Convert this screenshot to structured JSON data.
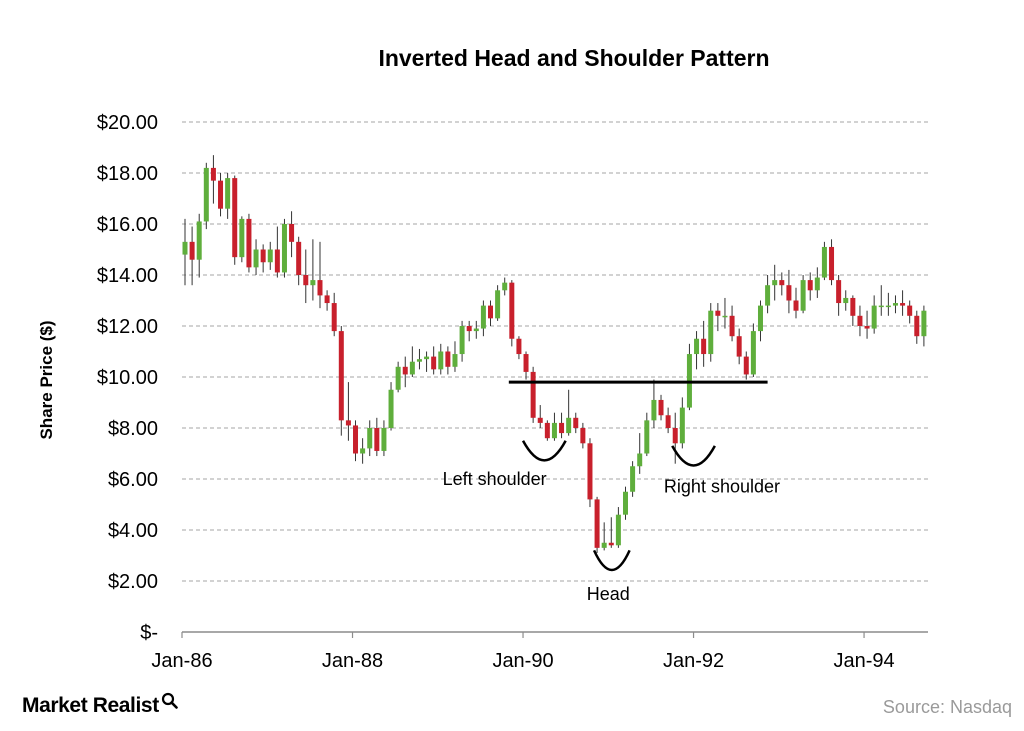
{
  "brand": {
    "name": "Market Realist",
    "icon": "magnifier-icon"
  },
  "source": "Source: Nasdaq",
  "chart_data": {
    "type": "candlestick",
    "title": "Inverted Head and Shoulder Pattern",
    "ylabel": "Share Price ($)",
    "xlabel": "",
    "ylim": [
      0,
      20
    ],
    "yticks": [
      {
        "v": 20,
        "label": "$20.00"
      },
      {
        "v": 18,
        "label": "$18.00"
      },
      {
        "v": 16,
        "label": "$16.00"
      },
      {
        "v": 14,
        "label": "$14.00"
      },
      {
        "v": 12,
        "label": "$12.00"
      },
      {
        "v": 10,
        "label": "$10.00"
      },
      {
        "v": 8,
        "label": "$8.00"
      },
      {
        "v": 6,
        "label": "$6.00"
      },
      {
        "v": 4,
        "label": "$4.00"
      },
      {
        "v": 2,
        "label": "$2.00"
      },
      {
        "v": 0,
        "label": "$-"
      }
    ],
    "xlim": [
      "1986-01",
      "1994-10"
    ],
    "xticks": [
      {
        "t": "1986-01",
        "label": "Jan-86"
      },
      {
        "t": "1988-01",
        "label": "Jan-88"
      },
      {
        "t": "1990-01",
        "label": "Jan-90"
      },
      {
        "t": "1992-01",
        "label": "Jan-92"
      },
      {
        "t": "1994-01",
        "label": "Jan-94"
      }
    ],
    "grid": "horizontal-dashed",
    "colors": {
      "up": "#5fae3c",
      "down": "#c8202c",
      "wick": "#333333",
      "grid": "#a6a6a6"
    },
    "candles": [
      [
        "1986-01",
        14.8,
        15.3,
        13.6,
        16.2
      ],
      [
        "1986-02",
        15.3,
        14.6,
        13.6,
        15.9
      ],
      [
        "1986-03",
        14.6,
        16.1,
        13.9,
        16.4
      ],
      [
        "1986-04",
        16.1,
        18.2,
        15.8,
        18.4
      ],
      [
        "1986-05",
        18.2,
        17.7,
        16.8,
        18.7
      ],
      [
        "1986-06",
        17.7,
        16.6,
        16.3,
        18.0
      ],
      [
        "1986-07",
        16.6,
        17.8,
        16.2,
        18.0
      ],
      [
        "1986-08",
        17.8,
        14.7,
        14.4,
        17.9
      ],
      [
        "1986-09",
        14.7,
        16.2,
        14.5,
        16.3
      ],
      [
        "1986-10",
        16.2,
        14.3,
        14.1,
        16.4
      ],
      [
        "1986-11",
        14.3,
        15.0,
        14.0,
        15.4
      ],
      [
        "1986-12",
        15.0,
        14.5,
        14.1,
        15.2
      ],
      [
        "1987-01",
        14.5,
        15.0,
        14.2,
        15.3
      ],
      [
        "1987-02",
        15.0,
        14.1,
        13.9,
        15.9
      ],
      [
        "1987-03",
        14.1,
        16.0,
        13.9,
        16.2
      ],
      [
        "1987-04",
        16.0,
        15.3,
        14.7,
        16.5
      ],
      [
        "1987-05",
        15.3,
        14.0,
        13.6,
        15.5
      ],
      [
        "1987-06",
        14.0,
        13.6,
        12.9,
        15.0
      ],
      [
        "1987-07",
        13.6,
        13.8,
        13.0,
        15.4
      ],
      [
        "1987-08",
        13.8,
        13.2,
        12.7,
        15.3
      ],
      [
        "1987-09",
        13.2,
        12.9,
        12.6,
        13.4
      ],
      [
        "1987-10",
        12.9,
        11.8,
        11.6,
        13.3
      ],
      [
        "1987-11",
        11.8,
        8.3,
        7.7,
        12.0
      ],
      [
        "1987-12",
        8.3,
        8.1,
        7.5,
        9.8
      ],
      [
        "1988-01",
        8.1,
        7.0,
        6.7,
        8.3
      ],
      [
        "1988-02",
        7.0,
        7.2,
        6.6,
        7.6
      ],
      [
        "1988-03",
        7.2,
        8.0,
        6.9,
        8.3
      ],
      [
        "1988-04",
        8.0,
        7.1,
        6.9,
        8.4
      ],
      [
        "1988-05",
        7.1,
        8.0,
        6.9,
        8.3
      ],
      [
        "1988-06",
        8.0,
        9.5,
        7.9,
        9.8
      ],
      [
        "1988-07",
        9.5,
        10.4,
        9.4,
        10.6
      ],
      [
        "1988-08",
        10.4,
        10.1,
        9.6,
        10.8
      ],
      [
        "1988-09",
        10.1,
        10.6,
        10.0,
        11.2
      ],
      [
        "1988-10",
        10.6,
        10.7,
        10.3,
        11.1
      ],
      [
        "1988-11",
        10.7,
        10.8,
        10.2,
        11.0
      ],
      [
        "1988-12",
        10.8,
        10.3,
        10.1,
        11.2
      ],
      [
        "1989-01",
        10.3,
        11.0,
        10.1,
        11.3
      ],
      [
        "1989-02",
        11.0,
        10.4,
        10.1,
        11.2
      ],
      [
        "1989-03",
        10.4,
        10.9,
        10.2,
        11.4
      ],
      [
        "1989-04",
        10.9,
        12.0,
        10.6,
        12.2
      ],
      [
        "1989-05",
        12.0,
        11.8,
        11.4,
        12.2
      ],
      [
        "1989-06",
        11.8,
        11.9,
        11.5,
        12.2
      ],
      [
        "1989-07",
        11.9,
        12.8,
        11.6,
        13.0
      ],
      [
        "1989-08",
        12.8,
        12.3,
        12.0,
        13.0
      ],
      [
        "1989-09",
        12.3,
        13.4,
        12.2,
        13.6
      ],
      [
        "1989-10",
        13.4,
        13.7,
        13.2,
        13.9
      ],
      [
        "1989-11",
        13.7,
        11.5,
        11.2,
        13.8
      ],
      [
        "1989-12",
        11.5,
        10.9,
        10.7,
        11.6
      ],
      [
        "1990-01",
        10.9,
        10.2,
        9.9,
        11.0
      ],
      [
        "1990-02",
        10.2,
        8.4,
        8.2,
        10.4
      ],
      [
        "1990-03",
        8.4,
        8.2,
        8.0,
        8.9
      ],
      [
        "1990-04",
        8.2,
        7.6,
        7.5,
        8.3
      ],
      [
        "1990-05",
        7.6,
        8.2,
        7.5,
        8.6
      ],
      [
        "1990-06",
        8.2,
        7.8,
        7.6,
        8.6
      ],
      [
        "1990-07",
        7.8,
        8.4,
        7.7,
        9.5
      ],
      [
        "1990-08",
        8.4,
        8.0,
        7.8,
        8.6
      ],
      [
        "1990-09",
        8.0,
        7.4,
        7.2,
        8.2
      ],
      [
        "1990-10",
        7.4,
        5.2,
        4.9,
        7.6
      ],
      [
        "1990-11",
        5.2,
        3.3,
        3.1,
        5.3
      ],
      [
        "1990-12",
        3.3,
        3.5,
        3.2,
        4.3
      ],
      [
        "1991-01",
        3.5,
        3.4,
        3.3,
        4.5
      ],
      [
        "1991-02",
        3.4,
        4.6,
        3.3,
        4.9
      ],
      [
        "1991-03",
        4.6,
        5.5,
        4.4,
        5.7
      ],
      [
        "1991-04",
        5.5,
        6.5,
        5.3,
        6.7
      ],
      [
        "1991-05",
        6.5,
        7.0,
        6.2,
        7.8
      ],
      [
        "1991-06",
        7.0,
        8.3,
        6.9,
        8.6
      ],
      [
        "1991-07",
        8.3,
        9.1,
        8.0,
        9.9
      ],
      [
        "1991-08",
        9.1,
        8.5,
        8.3,
        9.3
      ],
      [
        "1991-09",
        8.5,
        8.0,
        7.8,
        8.8
      ],
      [
        "1991-10",
        8.0,
        7.4,
        6.6,
        8.6
      ],
      [
        "1991-11",
        7.4,
        8.8,
        7.2,
        9.2
      ],
      [
        "1991-12",
        8.8,
        10.9,
        8.7,
        11.3
      ],
      [
        "1992-01",
        10.9,
        11.5,
        10.3,
        11.8
      ],
      [
        "1992-02",
        11.5,
        10.9,
        10.4,
        12.2
      ],
      [
        "1992-03",
        10.9,
        12.6,
        10.6,
        12.9
      ],
      [
        "1992-04",
        12.6,
        12.4,
        11.8,
        12.9
      ],
      [
        "1992-05",
        12.4,
        12.4,
        11.9,
        13.1
      ],
      [
        "1992-06",
        12.4,
        11.6,
        11.4,
        12.8
      ],
      [
        "1992-07",
        11.6,
        10.8,
        10.5,
        11.9
      ],
      [
        "1992-08",
        10.8,
        10.1,
        9.9,
        11.0
      ],
      [
        "1992-09",
        10.1,
        11.8,
        10.0,
        12.1
      ],
      [
        "1992-10",
        11.8,
        12.8,
        11.4,
        13.0
      ],
      [
        "1992-11",
        12.8,
        13.6,
        12.5,
        14.0
      ],
      [
        "1992-12",
        13.6,
        13.8,
        13.0,
        14.4
      ],
      [
        "1993-01",
        13.8,
        13.6,
        13.2,
        14.1
      ],
      [
        "1993-02",
        13.6,
        13.0,
        12.5,
        14.2
      ],
      [
        "1993-03",
        13.0,
        12.6,
        12.3,
        13.5
      ],
      [
        "1993-04",
        12.6,
        13.8,
        12.5,
        14.0
      ],
      [
        "1993-05",
        13.8,
        13.4,
        13.0,
        14.1
      ],
      [
        "1993-06",
        13.4,
        13.9,
        13.1,
        14.3
      ],
      [
        "1993-07",
        13.9,
        15.1,
        13.8,
        15.3
      ],
      [
        "1993-08",
        15.1,
        13.8,
        13.6,
        15.4
      ],
      [
        "1993-09",
        13.8,
        12.9,
        12.4,
        14.0
      ],
      [
        "1993-10",
        12.9,
        13.1,
        12.6,
        13.4
      ],
      [
        "1993-11",
        13.1,
        12.4,
        12.0,
        13.2
      ],
      [
        "1993-12",
        12.4,
        12.0,
        11.6,
        12.8
      ],
      [
        "1994-01",
        12.0,
        11.9,
        11.5,
        12.6
      ],
      [
        "1994-02",
        11.9,
        12.8,
        11.7,
        13.2
      ],
      [
        "1994-03",
        12.8,
        12.8,
        12.4,
        13.6
      ],
      [
        "1994-04",
        12.8,
        12.8,
        12.4,
        13.3
      ],
      [
        "1994-05",
        12.8,
        12.9,
        12.5,
        13.2
      ],
      [
        "1994-06",
        12.9,
        12.8,
        12.4,
        13.4
      ],
      [
        "1994-07",
        12.8,
        12.4,
        12.1,
        13.0
      ],
      [
        "1994-08",
        12.4,
        11.6,
        11.3,
        12.6
      ],
      [
        "1994-09",
        11.6,
        12.6,
        11.2,
        12.8
      ]
    ],
    "neckline": {
      "from": [
        "1989-11",
        9.8
      ],
      "to": [
        "1992-11",
        9.8
      ]
    },
    "annotations": [
      {
        "label": "Left shoulder",
        "arc": {
          "from": "1990-01",
          "to": "1990-07",
          "y": 7.5
        },
        "anchor": [
          "1989-09",
          6.0
        ]
      },
      {
        "label": "Head",
        "arc": {
          "from": "1990-11",
          "to": "1991-04",
          "y": 3.2
        },
        "anchor": [
          "1991-01",
          1.5
        ]
      },
      {
        "label": "Right shoulder",
        "arc": {
          "from": "1991-10",
          "to": "1992-04",
          "y": 7.3
        },
        "anchor": [
          "1992-05",
          5.7
        ]
      }
    ]
  }
}
